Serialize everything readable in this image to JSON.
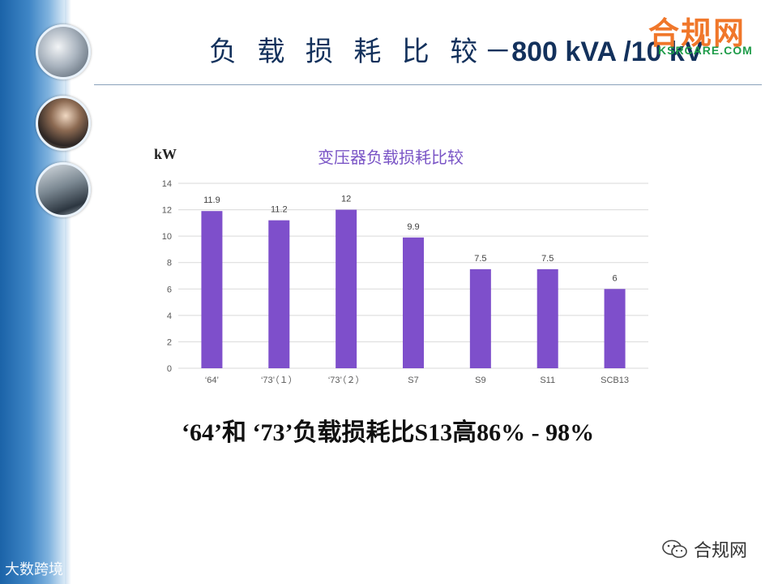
{
  "slide": {
    "title_cn": "负 载 损 耗 比 较",
    "title_dash": "－",
    "title_en": "800 kVA /10 kV",
    "logo_text": "合规网",
    "logo_url": "KSRCARE.COM",
    "unit": "kW",
    "chart_title": "变压器负载损耗比较",
    "summary": "‘64’和 ‘73’负载损耗比S13高86% - 98%",
    "watermark": "合规网",
    "corner_text": "大数跨境"
  },
  "colors": {
    "bar": "#7e4fcb",
    "title": "#13315c",
    "chart_title": "#7a55c6",
    "logo": "#f0772a",
    "logo_url": "#1f9c4a"
  },
  "icons": [
    "wechat-icon"
  ],
  "chart_data": {
    "type": "bar",
    "title": "变压器负载损耗比较",
    "ylabel": "kW",
    "categories": [
      "‘64’",
      "‘73’（１）",
      "‘73’（２）",
      "S7",
      "S9",
      "S11",
      "SCB13"
    ],
    "values": [
      11.9,
      11.2,
      12,
      9.9,
      7.5,
      7.5,
      6
    ],
    "value_labels": [
      "11.9",
      "11.2",
      "12",
      "9.9",
      "7.5",
      "7.5",
      "6"
    ],
    "yticks": [
      "0",
      "2",
      "4",
      "6",
      "8",
      "10",
      "12",
      "14"
    ],
    "ylim": [
      0,
      14
    ],
    "grid": true
  }
}
